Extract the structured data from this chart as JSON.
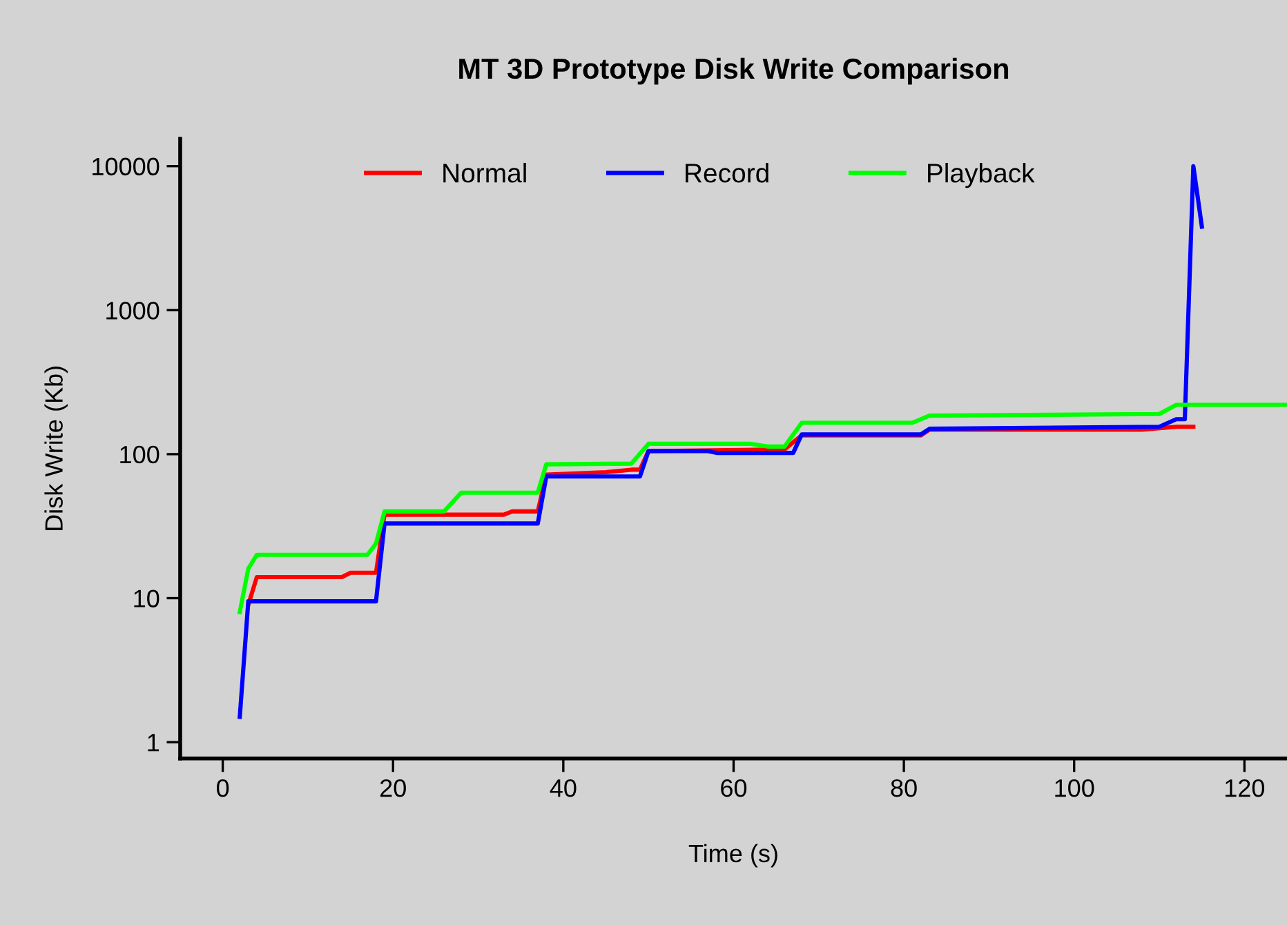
{
  "chart_data": {
    "type": "line",
    "title": "MT 3D Prototype Disk Write Comparison",
    "xlabel": "Time (s)",
    "ylabel": "Disk Write (Kb)",
    "log": "y",
    "grid": false,
    "legend": "top",
    "marker": "none",
    "line_style": "solid",
    "xlim": [
      -5,
      125
    ],
    "ylim": [
      0.77,
      15500
    ],
    "xticks": [
      0,
      20,
      40,
      60,
      80,
      100,
      120
    ],
    "yticks": [
      1,
      10,
      100,
      1000,
      10000
    ],
    "series": [
      {
        "name": "Normal",
        "color": "#ff0000",
        "x": [
          3,
          4,
          14,
          15,
          18,
          19,
          33,
          34,
          37,
          38,
          45,
          48,
          49,
          50,
          66,
          68,
          82,
          83,
          108,
          112,
          114
        ],
        "values": [
          9,
          14,
          14,
          15,
          15,
          38,
          38,
          40,
          40,
          72,
          75,
          78,
          78,
          105,
          108,
          135,
          135,
          148,
          148,
          155,
          155
        ]
      },
      {
        "name": "Record",
        "color": "#0000ff",
        "x": [
          2,
          3,
          18,
          19,
          37,
          38,
          49,
          50,
          57,
          58,
          67,
          68,
          82,
          83,
          110,
          112,
          113,
          114,
          115
        ],
        "values": [
          1.5,
          9.5,
          9.5,
          33,
          33,
          70,
          70,
          105,
          105,
          102,
          102,
          137,
          137,
          150,
          155,
          175,
          175,
          10000,
          3800
        ]
      },
      {
        "name": "Playback",
        "color": "#00ff00",
        "x": [
          2,
          3,
          4,
          17,
          18,
          19,
          26,
          28,
          37,
          38,
          48,
          50,
          62,
          64,
          66,
          68,
          81,
          83,
          110,
          112,
          125
        ],
        "values": [
          8,
          16,
          20,
          20,
          24,
          40,
          40,
          54,
          54,
          85,
          86,
          118,
          118,
          113,
          113,
          165,
          165,
          185,
          190,
          220,
          220
        ]
      }
    ]
  }
}
